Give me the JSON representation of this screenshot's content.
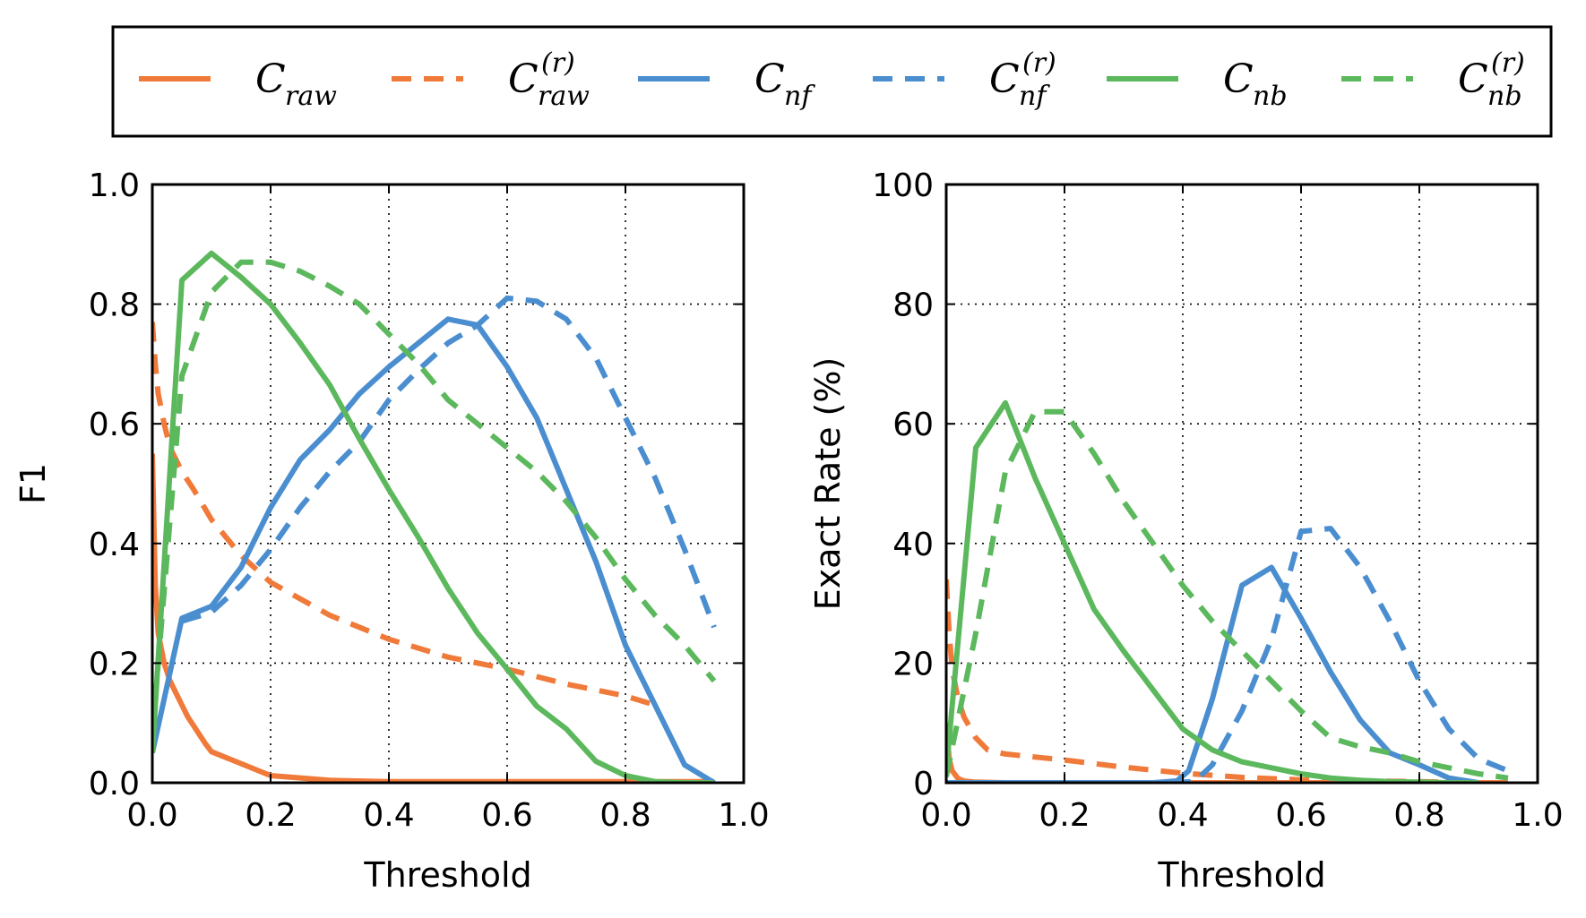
{
  "colors": {
    "raw": "#F07A3A",
    "nf": "#4A8ED0",
    "nb": "#5CB85C"
  },
  "legend": {
    "items": [
      {
        "key": "raw",
        "base": "C",
        "sub": "raw",
        "sup": "",
        "dashed": false
      },
      {
        "key": "raw",
        "base": "C",
        "sub": "raw",
        "sup": "(r)",
        "dashed": true
      },
      {
        "key": "nf",
        "base": "C",
        "sub": "nf",
        "sup": "",
        "dashed": false
      },
      {
        "key": "nf",
        "base": "C",
        "sub": "nf",
        "sup": "(r)",
        "dashed": true
      },
      {
        "key": "nb",
        "base": "C",
        "sub": "nb",
        "sup": "",
        "dashed": false
      },
      {
        "key": "nb",
        "base": "C",
        "sub": "nb",
        "sup": "(r)",
        "dashed": true
      }
    ]
  },
  "chart_data": [
    {
      "type": "line",
      "xlabel": "Threshold",
      "ylabel": "F1",
      "xlim": [
        0.0,
        1.0
      ],
      "ylim": [
        0.0,
        1.0
      ],
      "xticks": [
        "0.0",
        "0.2",
        "0.4",
        "0.6",
        "0.8",
        "1.0"
      ],
      "yticks": [
        "0.0",
        "0.2",
        "0.4",
        "0.6",
        "0.8",
        "1.0"
      ],
      "xtick_values": [
        0,
        0.2,
        0.4,
        0.6,
        0.8,
        1.0
      ],
      "ytick_values": [
        0,
        0.2,
        0.4,
        0.6,
        0.8,
        1.0
      ],
      "grid": true,
      "series": [
        {
          "key": "raw",
          "dashed": false,
          "x": [
            0,
            0.005,
            0.01,
            0.02,
            0.03,
            0.04,
            0.05,
            0.06,
            0.07,
            0.08,
            0.09,
            0.1,
            0.15,
            0.2,
            0.3,
            0.4,
            0.5,
            0.6,
            0.7,
            0.8,
            0.9,
            0.95
          ],
          "y": [
            0.55,
            0.33,
            0.25,
            0.2,
            0.17,
            0.15,
            0.13,
            0.11,
            0.095,
            0.08,
            0.065,
            0.052,
            0.032,
            0.012,
            0.004,
            0.002,
            0.002,
            0.002,
            0.002,
            0.002,
            0.002,
            0.002
          ]
        },
        {
          "key": "raw",
          "dashed": true,
          "x": [
            0,
            0.005,
            0.01,
            0.02,
            0.03,
            0.05,
            0.07,
            0.1,
            0.15,
            0.2,
            0.3,
            0.4,
            0.5,
            0.6,
            0.7,
            0.8,
            0.85
          ],
          "y": [
            0.77,
            0.7,
            0.65,
            0.6,
            0.56,
            0.52,
            0.49,
            0.44,
            0.38,
            0.335,
            0.28,
            0.24,
            0.21,
            0.19,
            0.165,
            0.145,
            0.13
          ]
        },
        {
          "key": "nf",
          "dashed": false,
          "x": [
            0,
            0.05,
            0.1,
            0.15,
            0.2,
            0.25,
            0.3,
            0.35,
            0.4,
            0.45,
            0.5,
            0.55,
            0.6,
            0.65,
            0.7,
            0.75,
            0.8,
            0.85,
            0.9,
            0.95
          ],
          "y": [
            0.05,
            0.275,
            0.295,
            0.36,
            0.46,
            0.54,
            0.59,
            0.65,
            0.695,
            0.735,
            0.775,
            0.765,
            0.695,
            0.61,
            0.49,
            0.37,
            0.23,
            0.13,
            0.03,
            0.0
          ]
        },
        {
          "key": "nf",
          "dashed": true,
          "x": [
            0.05,
            0.1,
            0.15,
            0.2,
            0.25,
            0.3,
            0.35,
            0.4,
            0.45,
            0.5,
            0.55,
            0.6,
            0.65,
            0.7,
            0.75,
            0.8,
            0.85,
            0.9,
            0.95
          ],
          "y": [
            0.27,
            0.285,
            0.33,
            0.39,
            0.46,
            0.52,
            0.57,
            0.64,
            0.69,
            0.735,
            0.765,
            0.81,
            0.805,
            0.775,
            0.71,
            0.61,
            0.51,
            0.39,
            0.26
          ]
        },
        {
          "key": "nb",
          "dashed": false,
          "x": [
            0,
            0.05,
            0.1,
            0.15,
            0.2,
            0.25,
            0.3,
            0.35,
            0.4,
            0.45,
            0.5,
            0.55,
            0.6,
            0.65,
            0.7,
            0.75,
            0.8,
            0.85,
            0.9,
            0.95
          ],
          "y": [
            0.05,
            0.84,
            0.885,
            0.845,
            0.8,
            0.735,
            0.665,
            0.575,
            0.49,
            0.41,
            0.325,
            0.25,
            0.19,
            0.128,
            0.09,
            0.036,
            0.012,
            0.002,
            0.0,
            0.0
          ]
        },
        {
          "key": "nb",
          "dashed": true,
          "x": [
            0,
            0.05,
            0.1,
            0.15,
            0.2,
            0.25,
            0.3,
            0.35,
            0.4,
            0.45,
            0.5,
            0.55,
            0.6,
            0.65,
            0.7,
            0.75,
            0.8,
            0.85,
            0.9,
            0.95
          ],
          "y": [
            0.08,
            0.68,
            0.82,
            0.87,
            0.87,
            0.855,
            0.83,
            0.8,
            0.75,
            0.7,
            0.64,
            0.6,
            0.56,
            0.52,
            0.47,
            0.41,
            0.34,
            0.28,
            0.23,
            0.17
          ]
        }
      ]
    },
    {
      "type": "line",
      "xlabel": "Threshold",
      "ylabel": "Exact Rate (%)",
      "xlim": [
        0.0,
        1.0
      ],
      "ylim": [
        0,
        100
      ],
      "xticks": [
        "0.0",
        "0.2",
        "0.4",
        "0.6",
        "0.8",
        "1.0"
      ],
      "yticks": [
        "0",
        "20",
        "40",
        "60",
        "80",
        "100"
      ],
      "xtick_values": [
        0,
        0.2,
        0.4,
        0.6,
        0.8,
        1.0
      ],
      "ytick_values": [
        0,
        20,
        40,
        60,
        80,
        100
      ],
      "grid": true,
      "series": [
        {
          "key": "raw",
          "dashed": false,
          "x": [
            0,
            0.005,
            0.01,
            0.02,
            0.03,
            0.05,
            0.1,
            0.2,
            0.4,
            0.6,
            0.8,
            0.95
          ],
          "y": [
            10,
            4,
            2,
            0.7,
            0.3,
            0.1,
            0,
            0,
            0,
            0,
            0,
            0
          ]
        },
        {
          "key": "raw",
          "dashed": true,
          "x": [
            0,
            0.005,
            0.01,
            0.02,
            0.03,
            0.05,
            0.07,
            0.1,
            0.2,
            0.3,
            0.4,
            0.5,
            0.6,
            0.7,
            0.8,
            0.85
          ],
          "y": [
            34,
            25,
            19,
            14,
            11,
            7.5,
            5.5,
            4.8,
            3.8,
            2.6,
            1.6,
            0.9,
            0.5,
            0.3,
            0.2,
            0.1
          ]
        },
        {
          "key": "nf",
          "dashed": false,
          "x": [
            0,
            0.1,
            0.2,
            0.3,
            0.35,
            0.39,
            0.41,
            0.45,
            0.5,
            0.55,
            0.6,
            0.65,
            0.7,
            0.75,
            0.8,
            0.85,
            0.9
          ],
          "y": [
            0,
            0,
            0,
            0,
            0,
            0.3,
            2,
            14,
            33,
            36,
            27.5,
            18.5,
            10.5,
            5,
            3,
            0.8,
            0
          ]
        },
        {
          "key": "nf",
          "dashed": true,
          "x": [
            0.38,
            0.42,
            0.45,
            0.5,
            0.55,
            0.6,
            0.65,
            0.7,
            0.75,
            0.8,
            0.85,
            0.9,
            0.95
          ],
          "y": [
            0,
            0.2,
            3,
            12,
            24,
            42,
            42.5,
            36,
            27,
            17,
            9,
            4,
            2
          ]
        },
        {
          "key": "nb",
          "dashed": false,
          "x": [
            0,
            0.05,
            0.1,
            0.15,
            0.2,
            0.25,
            0.3,
            0.35,
            0.4,
            0.45,
            0.5,
            0.55,
            0.6,
            0.65,
            0.7,
            0.75,
            0.8,
            0.85,
            0.9
          ],
          "y": [
            2,
            56,
            63.5,
            51,
            40,
            29,
            22,
            15.5,
            9,
            5.5,
            3.5,
            2.5,
            1.5,
            0.8,
            0.4,
            0.2,
            0.1,
            0,
            0
          ]
        },
        {
          "key": "nb",
          "dashed": true,
          "x": [
            0,
            0.05,
            0.1,
            0.15,
            0.2,
            0.25,
            0.3,
            0.35,
            0.4,
            0.45,
            0.5,
            0.55,
            0.6,
            0.65,
            0.7,
            0.75,
            0.8,
            0.85,
            0.9,
            0.95
          ],
          "y": [
            1,
            25,
            52,
            62,
            62,
            55,
            47,
            40,
            33,
            27,
            22,
            17,
            12,
            7.5,
            6,
            5,
            3.5,
            2.5,
            1.5,
            0.8
          ]
        }
      ]
    }
  ]
}
